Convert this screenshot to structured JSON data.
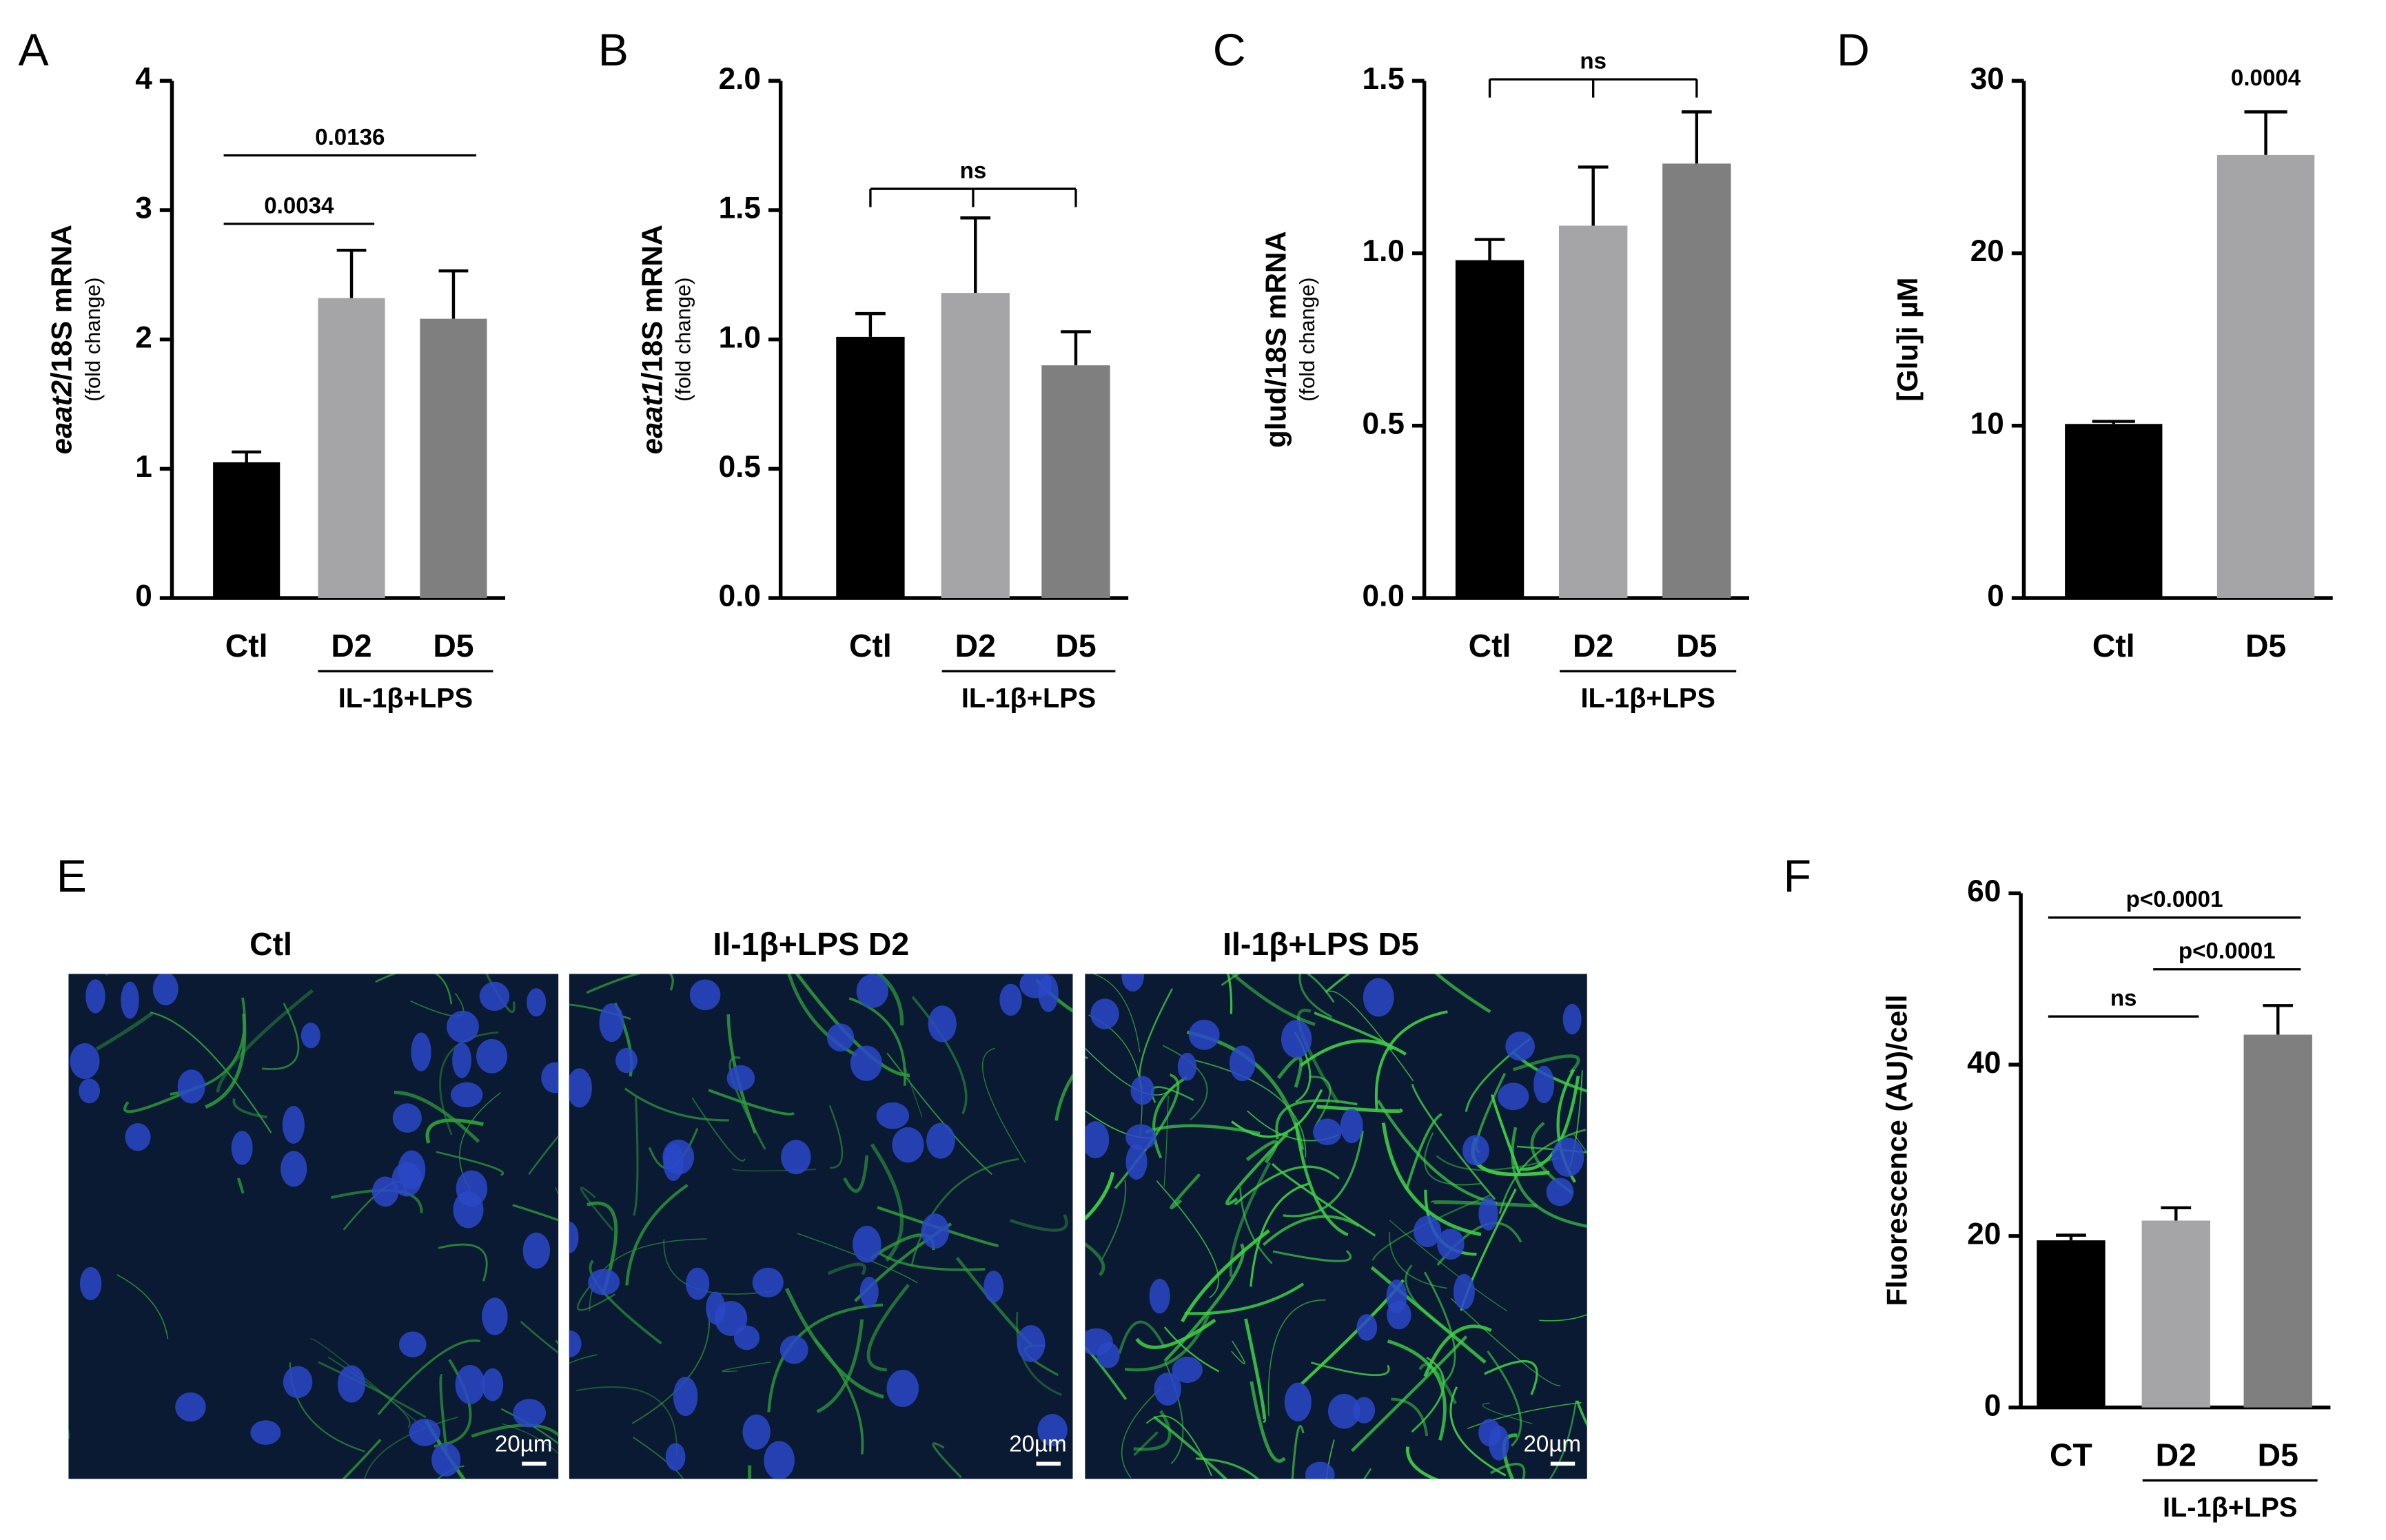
{
  "chart_data": [
    {
      "type": "bar",
      "panel_label": "A",
      "ylabel": [
        {
          "text": "eaat2",
          "italic": true
        },
        {
          "text": "/18S mRNA",
          "italic": false
        }
      ],
      "ylabel_sub": "(fold change)",
      "categories": [
        "Ctl",
        "D2",
        "D5"
      ],
      "values": [
        1.05,
        2.32,
        2.16
      ],
      "errors": [
        0.08,
        0.37,
        0.37
      ],
      "colors": [
        "#000000",
        "#a5a5a7",
        "#7f7f7f"
      ],
      "ylim": [
        0,
        4
      ],
      "yticks": [
        0,
        1,
        2,
        3,
        4
      ],
      "group_label": "IL-1β+LPS",
      "group": [
        "D2",
        "D5"
      ],
      "annotations": [
        {
          "label": "0.0034",
          "between": [
            "Ctl",
            "D2"
          ],
          "style": "line"
        },
        {
          "label": "0.0136",
          "between": [
            "Ctl",
            "D5"
          ],
          "style": "line"
        }
      ]
    },
    {
      "type": "bar",
      "panel_label": "B",
      "ylabel": [
        {
          "text": "eaat1",
          "italic": true
        },
        {
          "text": "/18S mRNA",
          "italic": false
        }
      ],
      "ylabel_sub": "(fold change)",
      "categories": [
        "Ctl",
        "D2",
        "D5"
      ],
      "values": [
        1.01,
        1.18,
        0.9
      ],
      "errors": [
        0.09,
        0.29,
        0.13
      ],
      "colors": [
        "#000000",
        "#a5a5a7",
        "#7f7f7f"
      ],
      "ylim": [
        0,
        2
      ],
      "yticks": [
        {
          "value": 0,
          "label": "0.0"
        },
        0.5,
        {
          "value": 1,
          "label": "1.0"
        },
        1.5,
        {
          "value": 2,
          "label": "2.0"
        }
      ],
      "group_label": "IL-1β+LPS",
      "group": [
        "D2",
        "D5"
      ],
      "annotations": [
        {
          "label": "ns",
          "between": [
            "Ctl",
            "D5"
          ],
          "style": "bracket"
        }
      ]
    },
    {
      "type": "bar",
      "panel_label": "C",
      "ylabel": [
        {
          "text": "glud/18S mRNA",
          "italic": false
        }
      ],
      "ylabel_sub": "(fold change)",
      "categories": [
        "Ctl",
        "D2",
        "D5"
      ],
      "values": [
        0.98,
        1.08,
        1.26
      ],
      "errors": [
        0.06,
        0.17,
        0.15
      ],
      "colors": [
        "#000000",
        "#a5a5a7",
        "#7f7f7f"
      ],
      "ylim": [
        0,
        1.5
      ],
      "yticks": [
        {
          "value": 0,
          "label": "0.0"
        },
        0.5,
        {
          "value": 1,
          "label": "1.0"
        },
        1.5
      ],
      "group_label": "IL-1β+LPS",
      "group": [
        "D2",
        "D5"
      ],
      "annotations": [
        {
          "label": "ns",
          "between": [
            "Ctl",
            "D5"
          ],
          "style": "bracket"
        }
      ]
    },
    {
      "type": "bar",
      "panel_label": "D",
      "ylabel": [
        {
          "text": "[Glu]i µM",
          "italic": false
        }
      ],
      "categories": [
        "Ctl",
        "D5"
      ],
      "values": [
        10.1,
        25.7
      ],
      "errors": [
        0.15,
        2.5
      ],
      "colors": [
        "#000000",
        "#a5a5a7"
      ],
      "ylim": [
        0,
        30
      ],
      "yticks": [
        0,
        10,
        20,
        30
      ],
      "annotations": [
        {
          "label": "0.0004",
          "between": [
            "D5",
            "D5"
          ],
          "style": "text"
        }
      ]
    },
    {
      "type": "bar",
      "panel_label": "F",
      "ylabel": [
        {
          "text": "Fluorescence (AU)/cell",
          "italic": false
        }
      ],
      "categories": [
        "CT",
        "D2",
        "D5"
      ],
      "values": [
        19.5,
        21.8,
        43.5
      ],
      "errors": [
        0.6,
        1.5,
        3.4
      ],
      "colors": [
        "#000000",
        "#a5a5a7",
        "#7f7f7f"
      ],
      "ylim": [
        0,
        60
      ],
      "yticks": [
        0,
        20,
        40,
        60
      ],
      "group_label": "IL-1β+LPS",
      "group": [
        "D2",
        "D5"
      ],
      "annotations": [
        {
          "label": "ns",
          "between": [
            "CT",
            "D2"
          ],
          "style": "line"
        },
        {
          "label": "p<0.0001",
          "between": [
            "D2",
            "D5"
          ],
          "style": "line"
        },
        {
          "label": "p<0.0001",
          "between": [
            "CT",
            "D5"
          ],
          "style": "line"
        }
      ]
    }
  ],
  "image_panel": {
    "panel_label": "E",
    "titles": [
      "Ctl",
      "Il-1β+LPS D2",
      "Il-1β+LPS D5"
    ],
    "scale_bars": [
      "20µm",
      "20µm",
      "20µm"
    ]
  }
}
